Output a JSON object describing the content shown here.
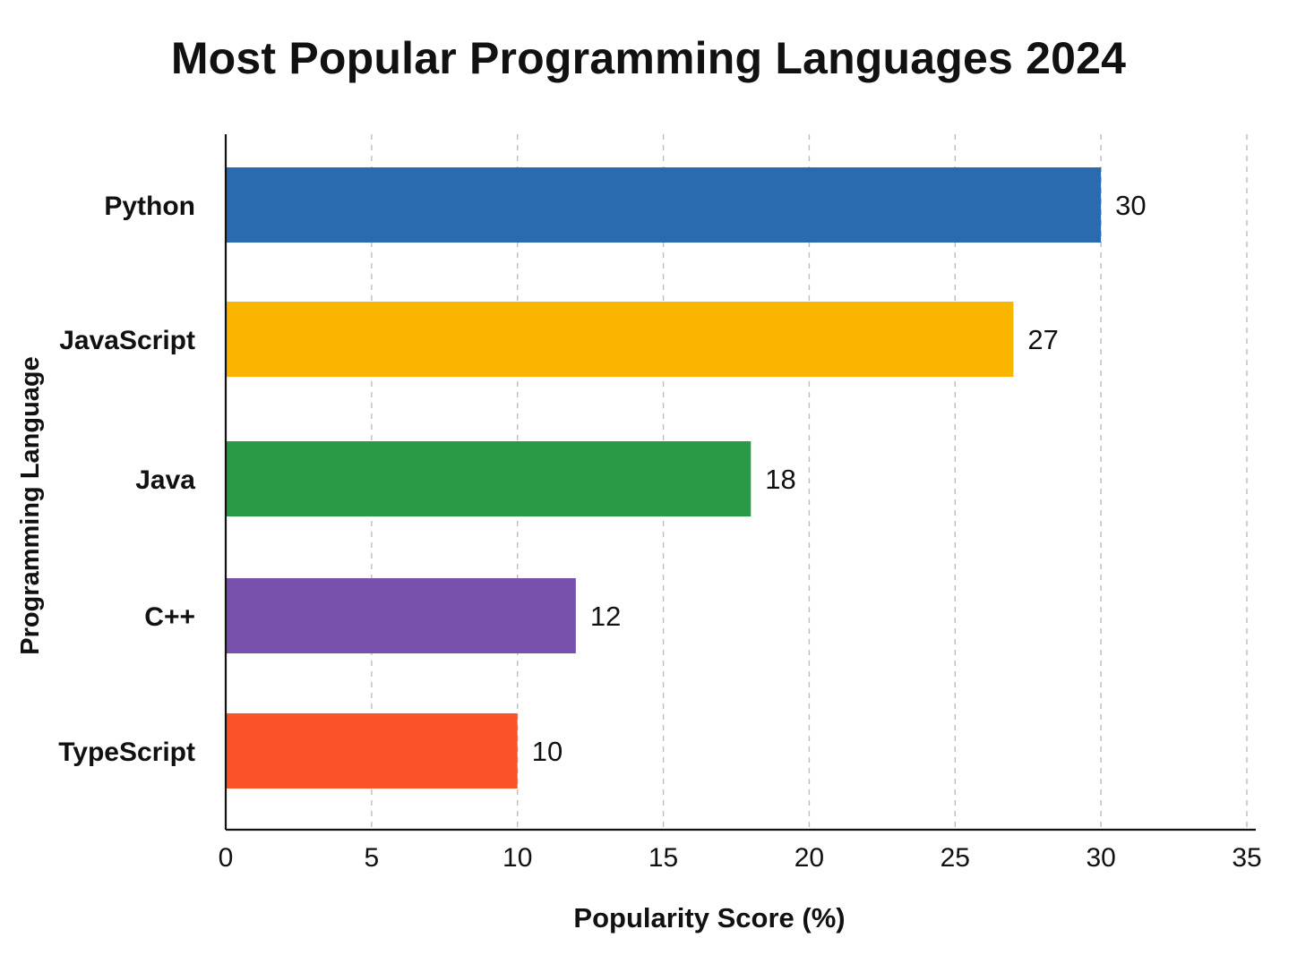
{
  "chart_data": {
    "type": "bar",
    "orientation": "horizontal",
    "title": "Most Popular Programming Languages 2024",
    "xlabel": "Popularity Score (%)",
    "ylabel": "Programming Language",
    "categories": [
      "Python",
      "JavaScript",
      "Java",
      "C++",
      "TypeScript"
    ],
    "values": [
      30,
      27,
      18,
      12,
      10
    ],
    "bar_colors": [
      "#2a6ab1",
      "#f9b500",
      "#2a9a47",
      "#7851ac",
      "#fc5227"
    ],
    "xlim": [
      0,
      35
    ],
    "xticks": [
      0,
      5,
      10,
      15,
      20,
      25,
      30,
      35
    ],
    "xtick_labels": [
      "0",
      "5",
      "10",
      "15",
      "20",
      "25",
      "30",
      "35"
    ],
    "data_labels": [
      "30",
      "27",
      "18",
      "12",
      "10"
    ],
    "grid": "vertical-dashed",
    "legend": "none"
  }
}
